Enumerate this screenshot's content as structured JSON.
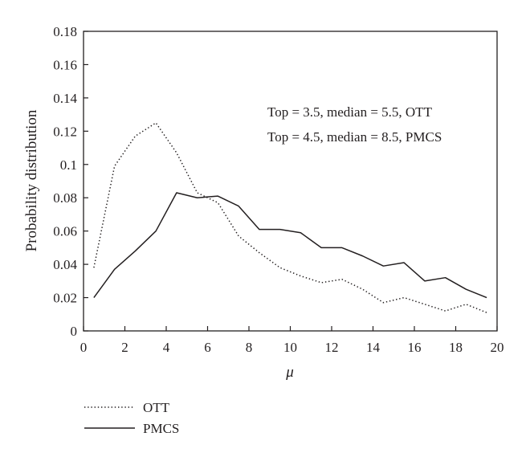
{
  "chart_data": {
    "type": "line",
    "xlabel": "μ",
    "ylabel": "Probability distribution",
    "xlim": [
      0,
      20
    ],
    "ylim": [
      0,
      0.18
    ],
    "xticks": [
      0,
      2,
      4,
      6,
      8,
      10,
      12,
      14,
      16,
      18,
      20
    ],
    "yticks": [
      0,
      0.02,
      0.04,
      0.06,
      0.08,
      0.1,
      0.12,
      0.14,
      0.16,
      0.18
    ],
    "xtick_labels": [
      "0",
      "2",
      "4",
      "6",
      "8",
      "10",
      "12",
      "14",
      "16",
      "18",
      "20"
    ],
    "ytick_labels": [
      "0",
      "0.02",
      "0.04",
      "0.06",
      "0.08",
      "0.1",
      "0.12",
      "0.14",
      "0.16",
      "0.18"
    ],
    "grid": false,
    "legend_position": "bottom-left, below plot",
    "annotations": [
      "Top = 3.5, median = 5.5, OTT",
      "Top = 4.5, median = 8.5, PMCS"
    ],
    "x": [
      0.5,
      1.5,
      2.5,
      3.5,
      4.5,
      5.5,
      6.5,
      7.5,
      8.5,
      9.5,
      10.5,
      11.5,
      12.5,
      13.5,
      14.5,
      15.5,
      16.5,
      17.5,
      18.5,
      19.5
    ],
    "series": [
      {
        "name": "OTT",
        "style": "dotted",
        "color": "#231f20",
        "values": [
          0.038,
          0.099,
          0.117,
          0.125,
          0.107,
          0.083,
          0.077,
          0.057,
          0.047,
          0.038,
          0.033,
          0.029,
          0.031,
          0.025,
          0.017,
          0.02,
          0.016,
          0.012,
          0.016,
          0.011
        ]
      },
      {
        "name": "PMCS",
        "style": "solid",
        "color": "#231f20",
        "values": [
          0.02,
          0.037,
          0.048,
          0.06,
          0.083,
          0.08,
          0.081,
          0.075,
          0.061,
          0.061,
          0.059,
          0.05,
          0.05,
          0.045,
          0.039,
          0.041,
          0.03,
          0.032,
          0.025,
          0.02
        ]
      }
    ]
  }
}
